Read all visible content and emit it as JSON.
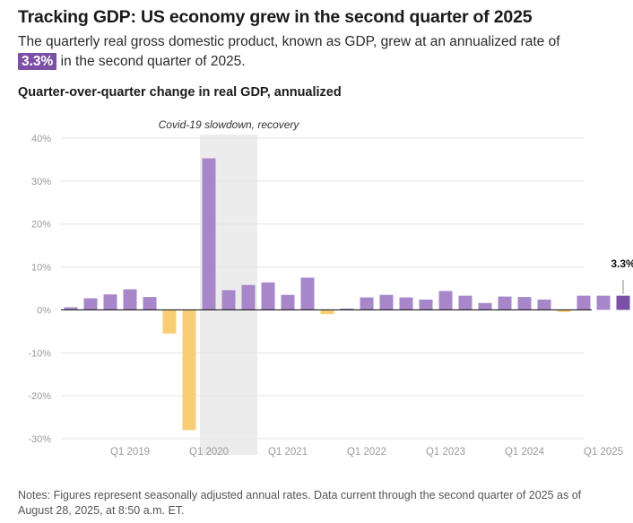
{
  "header": {
    "title": "Tracking GDP: US economy grew in the second quarter of 2025",
    "subtitle_before": "The quarterly real gross domestic product, known as GDP, grew at an annualized rate of",
    "subtitle_highlight": "3.3%",
    "subtitle_after": "in the second quarter of 2025."
  },
  "colors": {
    "positive": "#a787c9",
    "negative": "#f8cd73",
    "latest": "#7b4fa6",
    "highlight": "#7b4fa6",
    "shade": "#ececec",
    "grid": "#e3e3e3",
    "zero": "#222222"
  },
  "chart_data": {
    "type": "bar",
    "title": "Quarter-over-quarter change in real GDP, annualized",
    "ylabel": "",
    "xlabel": "",
    "ylim": [
      -30,
      40
    ],
    "y_ticks": [
      40,
      30,
      20,
      10,
      0,
      -10,
      -20,
      -30
    ],
    "y_tick_labels": [
      "40%",
      "30%",
      "20%",
      "10%",
      "0%",
      "-10%",
      "-20%",
      "-30%"
    ],
    "categories": [
      "Q2 2018",
      "Q3 2018",
      "Q4 2018",
      "Q1 2019",
      "Q2 2019",
      "Q3 2019",
      "Q4 2019",
      "Q1 2020",
      "Q2 2020",
      "Q3 2020",
      "Q4 2020",
      "Q1 2021",
      "Q2 2021",
      "Q3 2021",
      "Q4 2021",
      "Q1 2022",
      "Q2 2022",
      "Q3 2022",
      "Q4 2022",
      "Q1 2023",
      "Q2 2023",
      "Q3 2023",
      "Q4 2023",
      "Q1 2024",
      "Q2 2024",
      "Q3 2024",
      "Q4 2024",
      "Q1 2025",
      "Q2 2025"
    ],
    "values": [
      0.6,
      2.7,
      3.6,
      4.8,
      3.0,
      -5.5,
      -28.0,
      35.3,
      4.6,
      5.8,
      6.4,
      3.5,
      7.5,
      -1.0,
      0.3,
      2.9,
      3.5,
      2.9,
      2.4,
      4.4,
      3.3,
      1.6,
      3.1,
      3.0,
      2.4,
      -0.5,
      3.3,
      3.3,
      3.3
    ],
    "x_tick_labels": [
      {
        "category": "Q1 2019",
        "label": "Q1 2019"
      },
      {
        "category": "Q1 2020",
        "label": "Q1 2020"
      },
      {
        "category": "Q1 2021",
        "label": "Q1 2021"
      },
      {
        "category": "Q1 2022",
        "label": "Q1 2022"
      },
      {
        "category": "Q1 2023",
        "label": "Q1 2023"
      },
      {
        "category": "Q1 2024",
        "label": "Q1 2024"
      },
      {
        "category": "Q1 2025",
        "label": "Q1 2025"
      }
    ],
    "shaded_region": {
      "start": "Q1 2020",
      "end": "Q3 2020",
      "label": "Covid-19 slowdown, recovery"
    },
    "callout": {
      "category": "Q2 2025",
      "label": "3.3%"
    }
  },
  "notes": "Notes: Figures represent seasonally adjusted annual rates. Data current through the second quarter of 2025 as of August 28, 2025, at 8:50 a.m. ET."
}
